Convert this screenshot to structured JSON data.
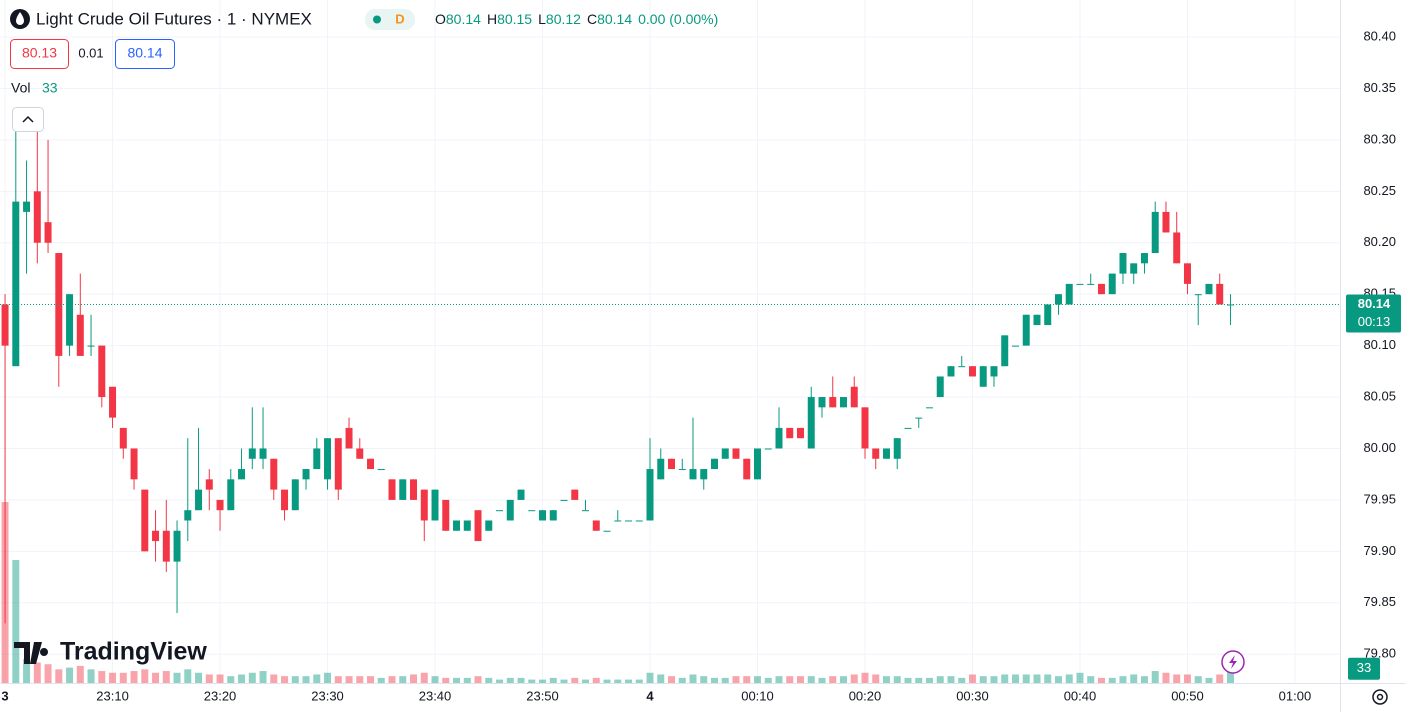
{
  "header": {
    "title": "Light Crude Oil Futures · 1 · NYMEX",
    "badge": "D",
    "legend": [
      {
        "label": "O",
        "value": "80.14"
      },
      {
        "label": "H",
        "value": "80.15"
      },
      {
        "label": "L",
        "value": "80.12"
      },
      {
        "label": "C",
        "value": "80.14"
      }
    ],
    "change": "0.00 (0.00%)"
  },
  "quote": {
    "bid": "80.13",
    "spread": "0.01",
    "ask": "80.14"
  },
  "volume_legend": {
    "label": "Vol",
    "value": "33"
  },
  "price_tag": {
    "price": "80.14",
    "countdown": "00:13"
  },
  "volume_tag": "33",
  "logo": "TradingView",
  "chart_data": {
    "type": "candlestick",
    "up_color": "#089981",
    "down_color": "#f23645",
    "grid": true,
    "open": [
      80.14,
      80.08,
      80.23,
      80.25,
      80.22,
      80.19,
      80.1,
      80.13,
      80.1,
      80.1,
      80.06,
      80.02,
      80.0,
      79.96,
      79.92,
      79.92,
      79.89,
      79.93,
      79.94,
      79.97,
      79.95,
      79.94,
      79.97,
      79.99,
      79.99,
      79.99,
      79.96,
      79.94,
      79.97,
      79.98,
      79.97,
      80.01,
      80.02,
      80.0,
      79.99,
      79.98,
      79.97,
      79.95,
      79.97,
      79.96,
      79.93,
      79.95,
      79.92,
      79.92,
      79.94,
      79.92,
      79.94,
      79.93,
      79.95,
      79.94,
      79.93,
      79.93,
      79.95,
      79.96,
      79.94,
      79.93,
      79.92,
      79.93,
      79.93,
      79.93,
      79.93,
      79.97,
      79.99,
      79.98,
      79.97,
      79.97,
      79.98,
      79.99,
      80.0,
      79.99,
      79.97,
      80.0,
      80.0,
      80.02,
      80.02,
      80.0,
      80.04,
      80.05,
      80.04,
      80.06,
      80.04,
      80.0,
      79.99,
      79.99,
      80.02,
      80.03,
      80.04,
      80.05,
      80.07,
      80.08,
      80.08,
      80.06,
      80.07,
      80.08,
      80.1,
      80.1,
      80.12,
      80.12,
      80.14,
      80.14,
      80.16,
      80.16,
      80.16,
      80.15,
      80.17,
      80.17,
      80.18,
      80.19,
      80.23,
      80.21,
      80.18,
      80.15,
      80.15,
      80.16,
      80.14
    ],
    "high": [
      80.15,
      80.33,
      80.28,
      80.31,
      80.3,
      80.19,
      80.15,
      80.17,
      80.13,
      80.1,
      80.06,
      80.02,
      80.0,
      79.96,
      79.94,
      79.95,
      79.93,
      80.01,
      80.02,
      79.98,
      79.95,
      79.98,
      80.0,
      80.04,
      80.04,
      79.99,
      79.96,
      79.97,
      79.98,
      80.01,
      80.01,
      80.01,
      80.03,
      80.01,
      79.99,
      79.98,
      79.97,
      79.97,
      79.97,
      79.96,
      79.96,
      79.95,
      79.93,
      79.93,
      79.94,
      79.93,
      79.94,
      79.95,
      79.96,
      79.94,
      79.94,
      79.94,
      79.95,
      79.96,
      79.95,
      79.93,
      79.92,
      79.94,
      79.93,
      79.93,
      80.01,
      80.0,
      79.99,
      79.99,
      80.03,
      79.98,
      79.99,
      80.0,
      80.0,
      79.99,
      80.0,
      80.0,
      80.04,
      80.02,
      80.02,
      80.06,
      80.05,
      80.07,
      80.05,
      80.07,
      80.04,
      80.0,
      80.0,
      80.01,
      80.02,
      80.03,
      80.04,
      80.07,
      80.08,
      80.09,
      80.08,
      80.08,
      80.08,
      80.11,
      80.1,
      80.13,
      80.13,
      80.14,
      80.15,
      80.16,
      80.16,
      80.17,
      80.16,
      80.17,
      80.19,
      80.18,
      80.19,
      80.24,
      80.24,
      80.23,
      80.18,
      80.15,
      80.16,
      80.17,
      80.15
    ],
    "low": [
      79.83,
      80.08,
      80.17,
      80.18,
      80.19,
      80.06,
      80.09,
      80.09,
      80.09,
      80.04,
      80.02,
      79.99,
      79.96,
      79.9,
      79.89,
      79.88,
      79.84,
      79.91,
      79.94,
      79.94,
      79.92,
      79.94,
      79.97,
      79.98,
      79.98,
      79.95,
      79.93,
      79.94,
      79.96,
      79.98,
      79.96,
      79.95,
      80.0,
      79.99,
      79.98,
      79.98,
      79.95,
      79.95,
      79.95,
      79.91,
      79.93,
      79.92,
      79.92,
      79.92,
      79.91,
      79.92,
      79.94,
      79.93,
      79.95,
      79.94,
      79.93,
      79.93,
      79.95,
      79.95,
      79.94,
      79.92,
      79.92,
      79.93,
      79.93,
      79.93,
      79.93,
      79.97,
      79.98,
      79.98,
      79.97,
      79.96,
      79.98,
      79.99,
      79.99,
      79.97,
      79.97,
      80.0,
      80.0,
      80.01,
      80.01,
      80.0,
      80.03,
      80.04,
      80.04,
      80.04,
      79.99,
      79.98,
      79.99,
      79.98,
      80.02,
      80.02,
      80.04,
      80.05,
      80.07,
      80.08,
      80.07,
      80.06,
      80.06,
      80.08,
      80.1,
      80.1,
      80.12,
      80.12,
      80.13,
      80.14,
      80.16,
      80.16,
      80.15,
      80.15,
      80.16,
      80.16,
      80.17,
      80.19,
      80.21,
      80.18,
      80.15,
      80.12,
      80.15,
      80.14,
      80.12
    ],
    "close": [
      80.1,
      80.24,
      80.24,
      80.2,
      80.2,
      80.09,
      80.15,
      80.09,
      80.1,
      80.05,
      80.03,
      80.0,
      79.97,
      79.9,
      79.91,
      79.89,
      79.92,
      79.94,
      79.96,
      79.96,
      79.94,
      79.97,
      79.98,
      80.0,
      80.0,
      79.96,
      79.94,
      79.97,
      79.98,
      80.0,
      80.01,
      79.96,
      80.0,
      79.99,
      79.98,
      79.98,
      79.95,
      79.97,
      79.95,
      79.93,
      79.96,
      79.92,
      79.93,
      79.93,
      79.91,
      79.93,
      79.94,
      79.95,
      79.96,
      79.94,
      79.94,
      79.94,
      79.95,
      79.95,
      79.94,
      79.92,
      79.92,
      79.93,
      79.93,
      79.93,
      79.98,
      79.99,
      79.98,
      79.98,
      79.98,
      79.98,
      79.99,
      80.0,
      79.99,
      79.97,
      80.0,
      80.0,
      80.02,
      80.01,
      80.01,
      80.05,
      80.05,
      80.04,
      80.05,
      80.04,
      80.0,
      79.99,
      80.0,
      80.01,
      80.02,
      80.03,
      80.04,
      80.07,
      80.08,
      80.08,
      80.07,
      80.08,
      80.08,
      80.11,
      80.1,
      80.13,
      80.13,
      80.14,
      80.15,
      80.16,
      80.16,
      80.16,
      80.15,
      80.17,
      80.19,
      80.18,
      80.19,
      80.23,
      80.21,
      80.18,
      80.16,
      80.15,
      80.16,
      80.14,
      80.14
    ],
    "volume": [
      530,
      360,
      70,
      60,
      55,
      40,
      45,
      50,
      40,
      35,
      30,
      30,
      35,
      40,
      30,
      35,
      30,
      40,
      30,
      25,
      25,
      20,
      25,
      30,
      35,
      25,
      20,
      20,
      20,
      25,
      30,
      20,
      20,
      20,
      20,
      15,
      20,
      20,
      25,
      30,
      20,
      15,
      15,
      15,
      20,
      15,
      10,
      15,
      15,
      10,
      10,
      15,
      10,
      15,
      10,
      15,
      10,
      10,
      10,
      10,
      30,
      25,
      20,
      15,
      25,
      20,
      15,
      15,
      20,
      20,
      20,
      15,
      20,
      20,
      20,
      20,
      15,
      20,
      20,
      25,
      30,
      25,
      20,
      20,
      15,
      15,
      15,
      20,
      20,
      15,
      25,
      20,
      20,
      25,
      25,
      25,
      25,
      25,
      20,
      25,
      30,
      20,
      15,
      15,
      20,
      25,
      20,
      35,
      30,
      25,
      25,
      20,
      15,
      25,
      33
    ],
    "xlim": [
      -0.47,
      124.19
    ],
    "ylim": [
      79.772,
      80.436
    ],
    "volume_ylim": [
      0,
      2000
    ],
    "xticks": [
      {
        "value": 0,
        "label": "3"
      },
      {
        "value": 10,
        "label": "23:10"
      },
      {
        "value": 20,
        "label": "23:20"
      },
      {
        "value": 30,
        "label": "23:30"
      },
      {
        "value": 40,
        "label": "23:40"
      },
      {
        "value": 50,
        "label": "23:50"
      },
      {
        "value": 60,
        "label": "4"
      },
      {
        "value": 70,
        "label": "00:10"
      },
      {
        "value": 80,
        "label": "00:20"
      },
      {
        "value": 90,
        "label": "00:30"
      },
      {
        "value": 100,
        "label": "00:40"
      },
      {
        "value": 110,
        "label": "00:50"
      },
      {
        "value": 120,
        "label": "01:00"
      }
    ],
    "yticks": [
      {
        "value": 79.8,
        "label": "79.80"
      },
      {
        "value": 79.85,
        "label": "79.85"
      },
      {
        "value": 79.9,
        "label": "79.90"
      },
      {
        "value": 79.95,
        "label": "79.95"
      },
      {
        "value": 80,
        "label": "80.00"
      },
      {
        "value": 80.05,
        "label": "80.05"
      },
      {
        "value": 80.1,
        "label": "80.10"
      },
      {
        "value": 80.15,
        "label": "80.15"
      },
      {
        "value": 80.2,
        "label": "80.20"
      },
      {
        "value": 80.25,
        "label": "80.25"
      },
      {
        "value": 80.3,
        "label": "80.30"
      },
      {
        "value": 80.35,
        "label": "80.35"
      },
      {
        "value": 80.4,
        "label": "80.40"
      }
    ]
  }
}
